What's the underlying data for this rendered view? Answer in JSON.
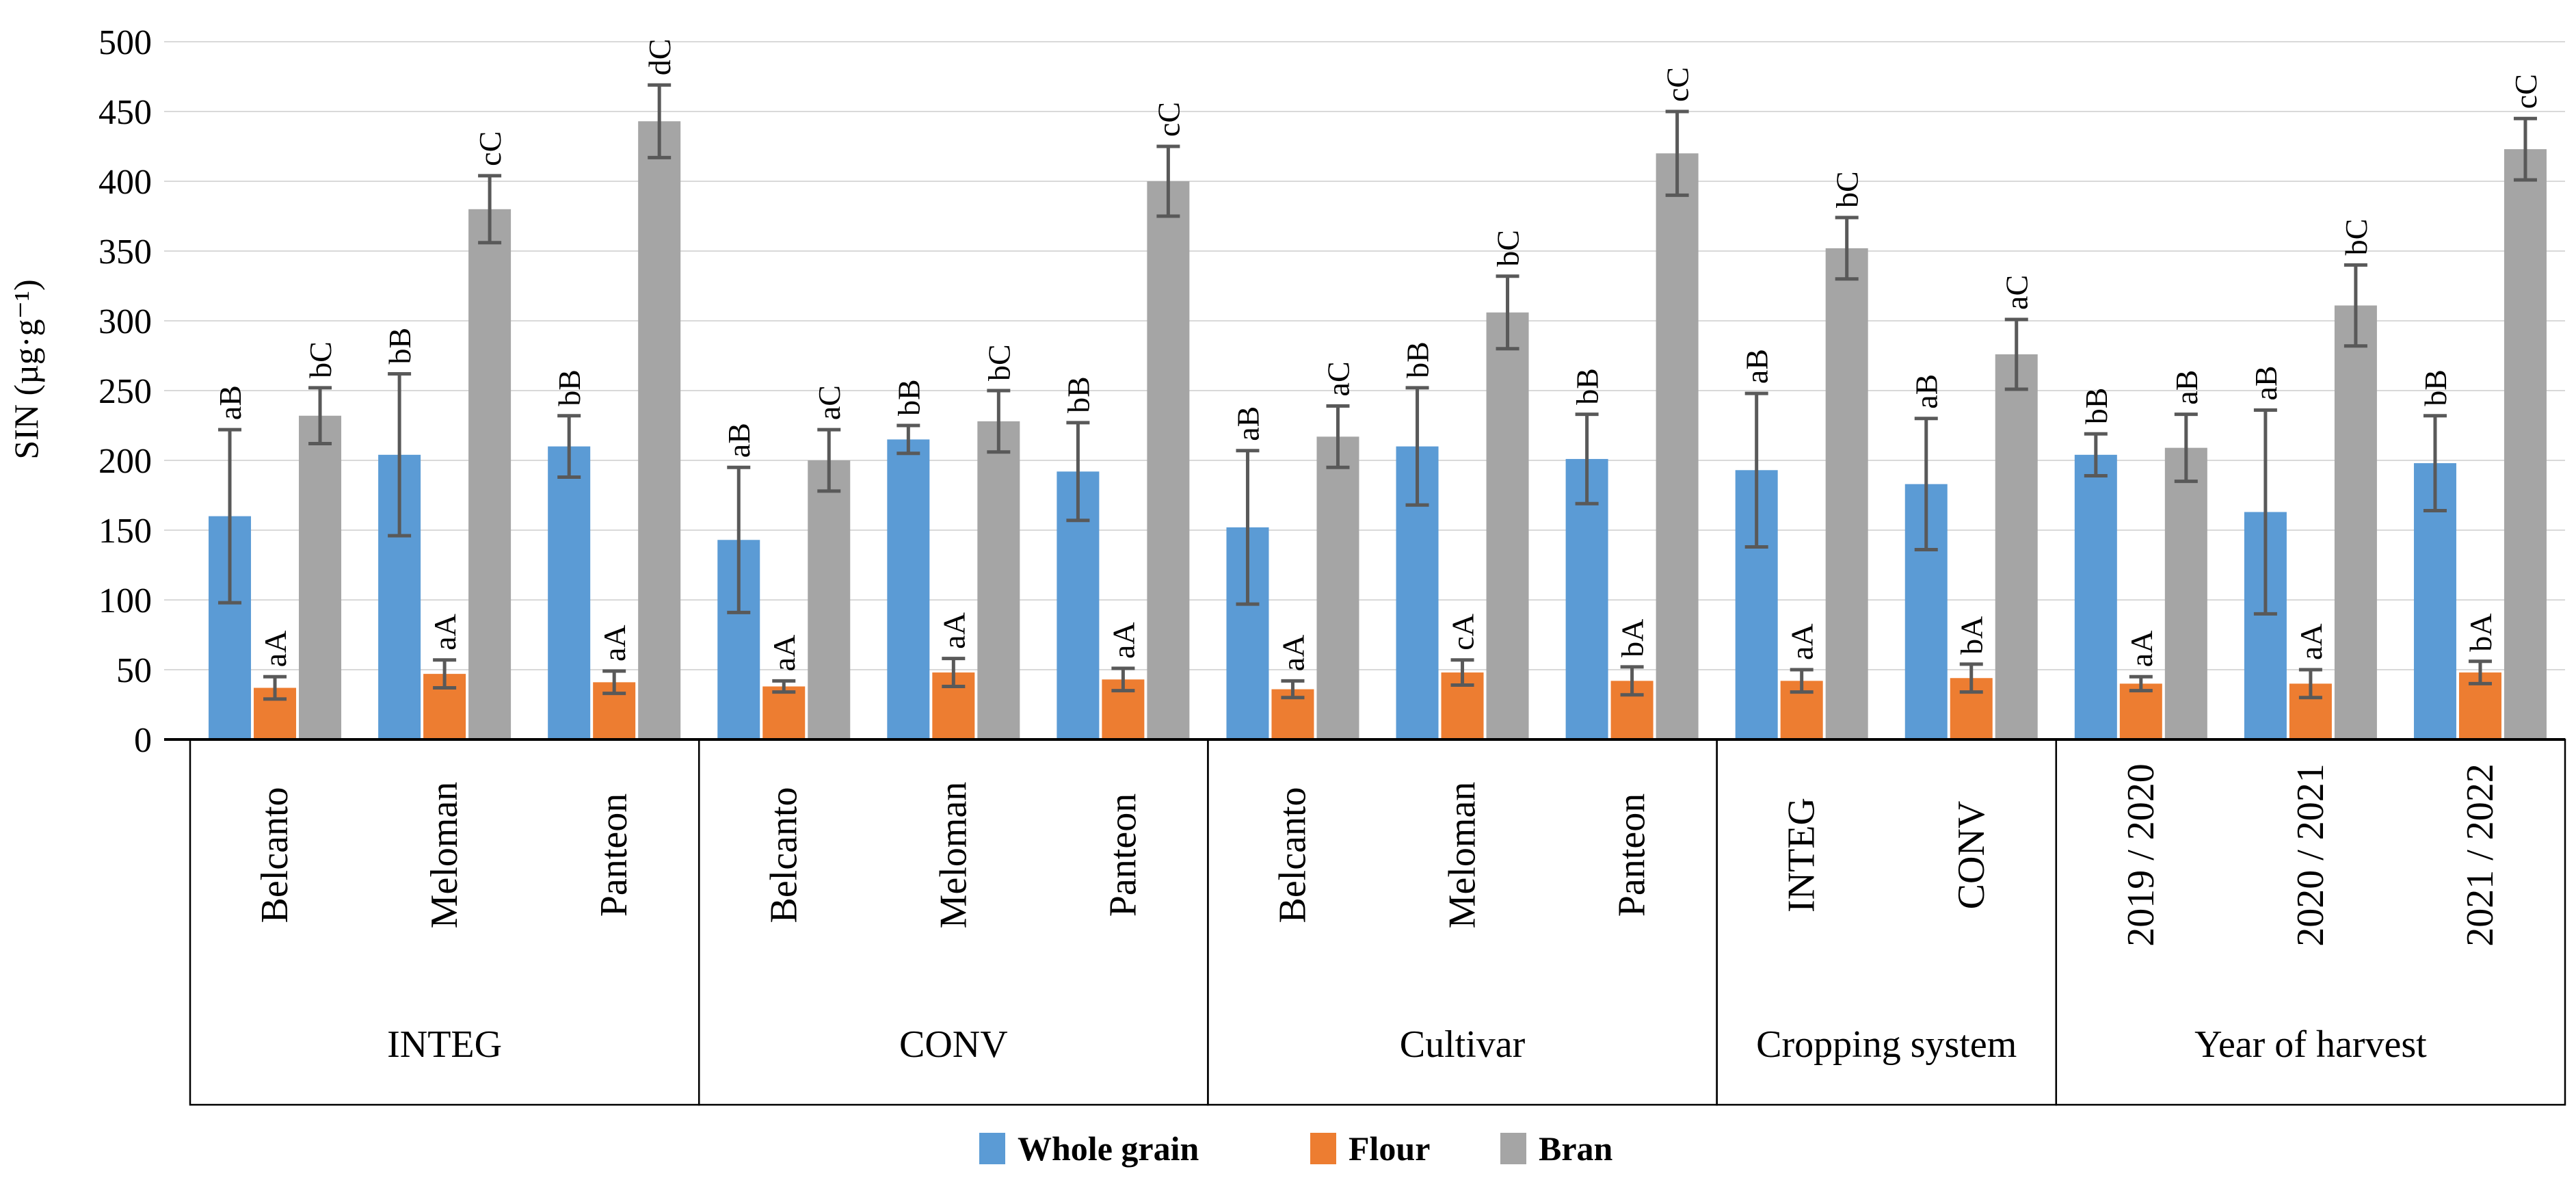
{
  "chart_data": {
    "type": "bar",
    "title": "",
    "ylabel": "SIN (µg·g⁻¹)",
    "xlabel": "",
    "ylim": [
      0,
      500
    ],
    "ytick_step": 50,
    "yticks": [
      0,
      50,
      100,
      150,
      200,
      250,
      300,
      350,
      400,
      450,
      500
    ],
    "grid": true,
    "grid_color": "#D9D9D9",
    "axis_color": "#000000",
    "error_bar_color": "#595959",
    "legend_position": "bottom",
    "series": [
      "Whole grain",
      "Flour",
      "Bran"
    ],
    "colors": [
      "#5B9BD5",
      "#ED7D31",
      "#A5A5A5"
    ],
    "legend": [
      {
        "label": "Whole grain",
        "color": "#5B9BD5"
      },
      {
        "label": "Flour",
        "color": "#ED7D31"
      },
      {
        "label": "Bran",
        "color": "#A5A5A5"
      }
    ],
    "groups": [
      {
        "label": "INTEG",
        "categories": [
          {
            "label": "Belcanto",
            "bars": [
              {
                "series": "Whole grain",
                "value": 160,
                "error": 62,
                "letter": "aB"
              },
              {
                "series": "Flour",
                "value": 37,
                "error": 8,
                "letter": "aA"
              },
              {
                "series": "Bran",
                "value": 232,
                "error": 20,
                "letter": "bC"
              }
            ]
          },
          {
            "label": "Meloman",
            "bars": [
              {
                "series": "Whole grain",
                "value": 204,
                "error": 58,
                "letter": "bB"
              },
              {
                "series": "Flour",
                "value": 47,
                "error": 10,
                "letter": "aA"
              },
              {
                "series": "Bran",
                "value": 380,
                "error": 24,
                "letter": "cC"
              }
            ]
          },
          {
            "label": "Panteon",
            "bars": [
              {
                "series": "Whole grain",
                "value": 210,
                "error": 22,
                "letter": "bB"
              },
              {
                "series": "Flour",
                "value": 41,
                "error": 8,
                "letter": "aA"
              },
              {
                "series": "Bran",
                "value": 443,
                "error": 26,
                "letter": "dC"
              }
            ]
          }
        ]
      },
      {
        "label": "CONV",
        "categories": [
          {
            "label": "Belcanto",
            "bars": [
              {
                "series": "Whole grain",
                "value": 143,
                "error": 52,
                "letter": "aB"
              },
              {
                "series": "Flour",
                "value": 38,
                "error": 4,
                "letter": "aA"
              },
              {
                "series": "Bran",
                "value": 200,
                "error": 22,
                "letter": "aC"
              }
            ]
          },
          {
            "label": "Meloman",
            "bars": [
              {
                "series": "Whole grain",
                "value": 215,
                "error": 10,
                "letter": "bB"
              },
              {
                "series": "Flour",
                "value": 48,
                "error": 10,
                "letter": "aA"
              },
              {
                "series": "Bran",
                "value": 228,
                "error": 22,
                "letter": "bC"
              }
            ]
          },
          {
            "label": "Panteon",
            "bars": [
              {
                "series": "Whole grain",
                "value": 192,
                "error": 35,
                "letter": "bB"
              },
              {
                "series": "Flour",
                "value": 43,
                "error": 8,
                "letter": "aA"
              },
              {
                "series": "Bran",
                "value": 400,
                "error": 25,
                "letter": "cC"
              }
            ]
          }
        ]
      },
      {
        "label": "Cultivar",
        "categories": [
          {
            "label": "Belcanto",
            "bars": [
              {
                "series": "Whole grain",
                "value": 152,
                "error": 55,
                "letter": "aB"
              },
              {
                "series": "Flour",
                "value": 36,
                "error": 6,
                "letter": "aA"
              },
              {
                "series": "Bran",
                "value": 217,
                "error": 22,
                "letter": "aC"
              }
            ]
          },
          {
            "label": "Meloman",
            "bars": [
              {
                "series": "Whole grain",
                "value": 210,
                "error": 42,
                "letter": "bB"
              },
              {
                "series": "Flour",
                "value": 48,
                "error": 9,
                "letter": "cA"
              },
              {
                "series": "Bran",
                "value": 306,
                "error": 26,
                "letter": "bC"
              }
            ]
          },
          {
            "label": "Panteon",
            "bars": [
              {
                "series": "Whole grain",
                "value": 201,
                "error": 32,
                "letter": "bB"
              },
              {
                "series": "Flour",
                "value": 42,
                "error": 10,
                "letter": "bA"
              },
              {
                "series": "Bran",
                "value": 420,
                "error": 30,
                "letter": "cC"
              }
            ]
          }
        ]
      },
      {
        "label": "Cropping system",
        "categories": [
          {
            "label": "INTEG",
            "bars": [
              {
                "series": "Whole grain",
                "value": 193,
                "error": 55,
                "letter": "aB"
              },
              {
                "series": "Flour",
                "value": 42,
                "error": 8,
                "letter": "aA"
              },
              {
                "series": "Bran",
                "value": 352,
                "error": 22,
                "letter": "bC"
              }
            ]
          },
          {
            "label": "CONV",
            "bars": [
              {
                "series": "Whole grain",
                "value": 183,
                "error": 47,
                "letter": "aB"
              },
              {
                "series": "Flour",
                "value": 44,
                "error": 10,
                "letter": "bA"
              },
              {
                "series": "Bran",
                "value": 276,
                "error": 25,
                "letter": "aC"
              }
            ]
          }
        ]
      },
      {
        "label": "Year of harvest",
        "categories": [
          {
            "label": "2019 / 2020",
            "bars": [
              {
                "series": "Whole grain",
                "value": 204,
                "error": 15,
                "letter": "bB"
              },
              {
                "series": "Flour",
                "value": 40,
                "error": 5,
                "letter": "aA"
              },
              {
                "series": "Bran",
                "value": 209,
                "error": 24,
                "letter": "aB"
              }
            ]
          },
          {
            "label": "2020 / 2021",
            "bars": [
              {
                "series": "Whole grain",
                "value": 163,
                "error": 73,
                "letter": "aB"
              },
              {
                "series": "Flour",
                "value": 40,
                "error": 10,
                "letter": "aA"
              },
              {
                "series": "Bran",
                "value": 311,
                "error": 29,
                "letter": "bC"
              }
            ]
          },
          {
            "label": "2021 / 2022",
            "bars": [
              {
                "series": "Whole grain",
                "value": 198,
                "error": 34,
                "letter": "bB"
              },
              {
                "series": "Flour",
                "value": 48,
                "error": 8,
                "letter": "bA"
              },
              {
                "series": "Bran",
                "value": 423,
                "error": 22,
                "letter": "cC"
              }
            ]
          }
        ]
      }
    ]
  }
}
